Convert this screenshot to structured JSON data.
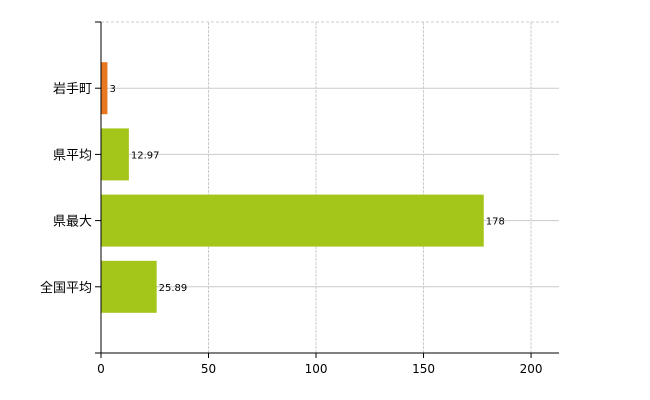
{
  "chart_data": {
    "type": "bar",
    "orientation": "horizontal",
    "title": "",
    "xlabel": "",
    "ylabel": "",
    "categories": [
      "岩手町",
      "県平均",
      "県最大",
      "全国平均"
    ],
    "values": [
      3,
      12.97,
      178,
      25.89
    ],
    "data_labels": [
      "3",
      "12.97",
      "178",
      "25.89"
    ],
    "bar_colors": [
      "#e87722",
      "#a4c61a",
      "#a4c61a",
      "#a4c61a"
    ],
    "xlim": [
      0,
      213
    ],
    "xticks": [
      0,
      50,
      100,
      150,
      200
    ],
    "xtick_labels": [
      "0",
      "50",
      "100",
      "150",
      "200"
    ],
    "grid": true,
    "grid_color": "#cccccc",
    "legend": "none"
  }
}
